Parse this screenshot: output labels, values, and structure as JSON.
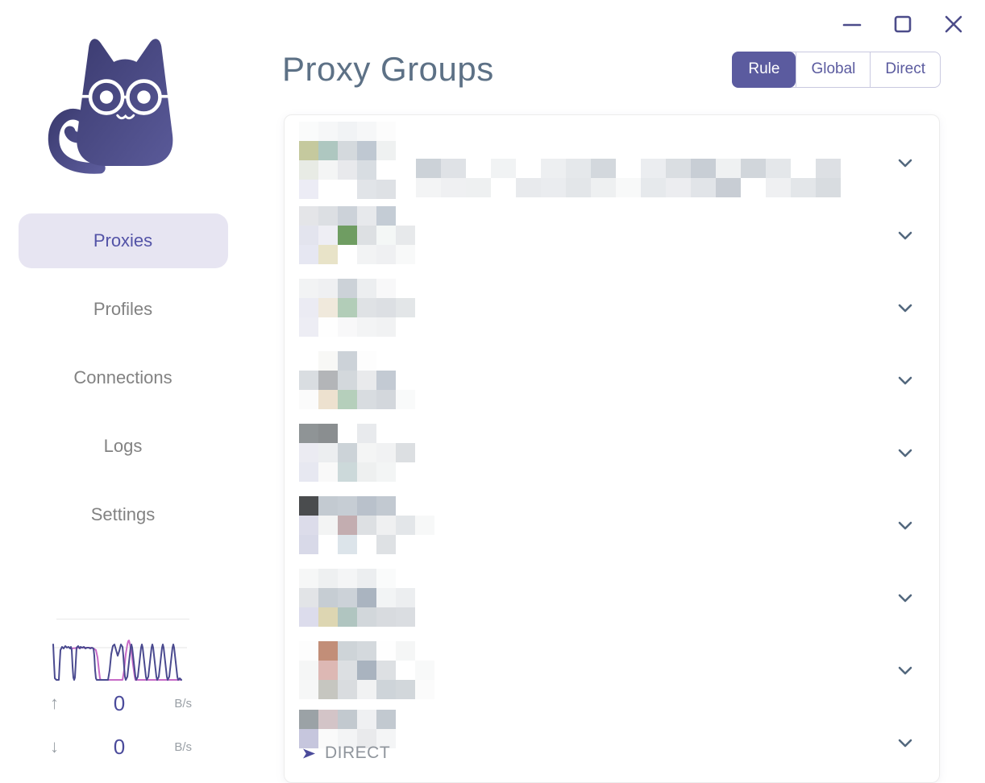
{
  "window": {
    "controls": {
      "minimize": "minimize",
      "maximize": "maximize",
      "close": "close"
    }
  },
  "sidebar": {
    "logo": "clash-cat-logo",
    "nav_items": [
      {
        "label": "Proxies",
        "active": true
      },
      {
        "label": "Profiles",
        "active": false
      },
      {
        "label": "Connections",
        "active": false
      },
      {
        "label": "Logs",
        "active": false
      },
      {
        "label": "Settings",
        "active": false
      }
    ],
    "traffic": {
      "up_value": "0",
      "up_unit": "B/s",
      "down_value": "0",
      "down_unit": "B/s"
    }
  },
  "header": {
    "title": "Proxy Groups"
  },
  "mode_toggle": {
    "options": [
      {
        "label": "Rule",
        "active": true
      },
      {
        "label": "Global",
        "active": false
      },
      {
        "label": "Direct",
        "active": false
      }
    ]
  },
  "proxy_groups": {
    "direct_label": "DIRECT",
    "note": "group names and proxy entries are pixelated (privacy-blurred) in the screenshot",
    "groups": [
      {
        "mosaic": [
          [
            "#fafbfb",
            "#f6f7f8",
            "#f1f3f5",
            "#f6f7f8",
            "#fcfcfc"
          ],
          [
            "#c5c99e",
            "#aec7c0",
            "#d4d9dd",
            "#bfc8d2",
            "#eff1f1"
          ],
          [
            "#e8ebe5",
            "#f4f5f5",
            "#e8e9ec",
            "#d8dde2",
            "#ffffff"
          ],
          [
            "#ececf5",
            "#ffffff",
            "#ffffff",
            "#e1e4e8",
            "#dee1e5"
          ]
        ],
        "wide_mosaic": [
          [
            "#ccd2d8",
            "#dfe2e6",
            "#ffffff",
            "#f1f3f4",
            "#ffffff",
            "#edeff1",
            "#e5e8eb",
            "#d3d8dd",
            "#ffffff",
            "#ebedf0",
            "#dadee2",
            "#c8ced5",
            "#eff1f2",
            "#d1d6db",
            "#e4e7ea",
            "#ffffff",
            "#dde0e4"
          ],
          [
            "#f3f4f5",
            "#eff0f2",
            "#eef0f1",
            "#ffffff",
            "#e8eaed",
            "#eaecef",
            "#e3e6e9",
            "#eef0f1",
            "#f8f9f9",
            "#e6e9ec",
            "#ecedf0",
            "#e1e4e8",
            "#c8cdd4",
            "#ffffff",
            "#eff0f2",
            "#e3e6e9",
            "#d8dce0"
          ]
        ]
      },
      {
        "mosaic": [
          [
            "#e4e5e8",
            "#dcdfe3",
            "#ccd2d9",
            "#e7e9ec",
            "#c4ccd5",
            ""
          ],
          [
            "#e3e4ee",
            "#eeeef4",
            "#6f9d62",
            "#dde0e3",
            "#f4f7f6",
            "#e7e9eb"
          ],
          [
            "#e6e7f2",
            "#e8e3c8",
            "#ffffff",
            "#f2f3f4",
            "#eff0f2",
            "#f8f9f9"
          ]
        ]
      },
      {
        "mosaic": [
          [
            "#f2f3f4",
            "#eff0f2",
            "#ccd2d8",
            "#eceef0",
            "#f8f8f9",
            ""
          ],
          [
            "#ebebf3",
            "#f0e9dc",
            "#b2cdb8",
            "#dfe2e5",
            "#dcdfe3",
            "#e3e6e8"
          ],
          [
            "#ededf4",
            "#fefefe",
            "#f8f8f9",
            "#f3f4f5",
            "#f1f2f3",
            ""
          ]
        ]
      },
      {
        "mosaic": [
          [
            "#ffffff",
            "#f8f8f6",
            "#ccd2d8",
            "#fdfdfd",
            "",
            ""
          ],
          [
            "#d9dde1",
            "#b3b5b8",
            "#d3d8dc",
            "#e9eaec",
            "#c3cad3",
            ""
          ],
          [
            "#fbfbfb",
            "#ede1cf",
            "#b5cfbb",
            "#d8dce0",
            "#d3d7dc",
            "#f9fafa"
          ]
        ]
      },
      {
        "mosaic": [
          [
            "#8f9496",
            "#8a8e90",
            "#ffffff",
            "#e8eaed",
            "",
            ""
          ],
          [
            "#ebebf2",
            "#eceef0",
            "#ccd3d8",
            "#f4f5f5",
            "#f1f2f3",
            "#dcdfe2"
          ],
          [
            "#e7e8f1",
            "#f9f9f9",
            "#ccd9da",
            "#eef0f0",
            "#f3f5f5",
            ""
          ]
        ]
      },
      {
        "mosaic": [
          [
            "#4a4c4e",
            "#c3cad1",
            "#c6cdd4",
            "#b9c1cb",
            "#c2c9d1",
            "",
            ""
          ],
          [
            "#dcdcea",
            "#f3f4f4",
            "#c3adb0",
            "#dde0e3",
            "#eff0f1",
            "#e3e6e9",
            "#f7f8f8"
          ],
          [
            "#d8d9e8",
            "#ffffff",
            "#dce4ea",
            "#ffffff",
            "#dee1e4",
            "",
            ""
          ]
        ]
      },
      {
        "mosaic": [
          [
            "#f6f7f7",
            "#eef0f1",
            "#f4f5f6",
            "#eceef0",
            "#fafbfb",
            ""
          ],
          [
            "#e2e4e7",
            "#c6cdd3",
            "#ccd2d8",
            "#aab4c0",
            "#f2f4f5",
            "#eceef0"
          ],
          [
            "#dcdcec",
            "#ddd6b2",
            "#b0c5c0",
            "#d2d7db",
            "#d8dbdf",
            "#dadde1"
          ]
        ]
      },
      {
        "mosaic": [
          [
            "#fdfdfd",
            "#c28e78",
            "#ced4d8",
            "#d4d9dd",
            "#fefefe",
            "#f5f6f6",
            ""
          ],
          [
            "#f5f6f6",
            "#ddb8b4",
            "#dcdfe2",
            "#a9b3bf",
            "#dde0e3",
            "#ffffff",
            "#f8f9f9"
          ],
          [
            "#f6f7f7",
            "#c6c6c0",
            "#d9dcdf",
            "#f1f2f3",
            "#ced4d9",
            "#d2d7db",
            "#fbfbfb"
          ]
        ]
      },
      {
        "mosaic": [
          [
            "#9ba2a6",
            "#d3c4c7",
            "#c2c9cf",
            "#eff0f2",
            "#c2c9d0"
          ],
          [
            "#c6c6dd",
            "#fafafa",
            "#f3f4f5",
            "#e9eaec",
            "#f4f5f6"
          ]
        ],
        "has_direct_label": true
      }
    ]
  },
  "colors": {
    "accent": "#5b5b9f",
    "accent_dark": "#4c4c8a",
    "nav_active_bg": "#e7e5f2",
    "nav_active_text": "#5353a7",
    "nav_text": "#828282",
    "title_color": "#5d7186",
    "chevron_color": "#53687e",
    "graph_primary": "#4a4a8f",
    "graph_secondary": "#c76ac7",
    "value_color": "#4b4b9b",
    "logo_top": "#3c3c71",
    "logo_bottom": "#5a5a99"
  }
}
